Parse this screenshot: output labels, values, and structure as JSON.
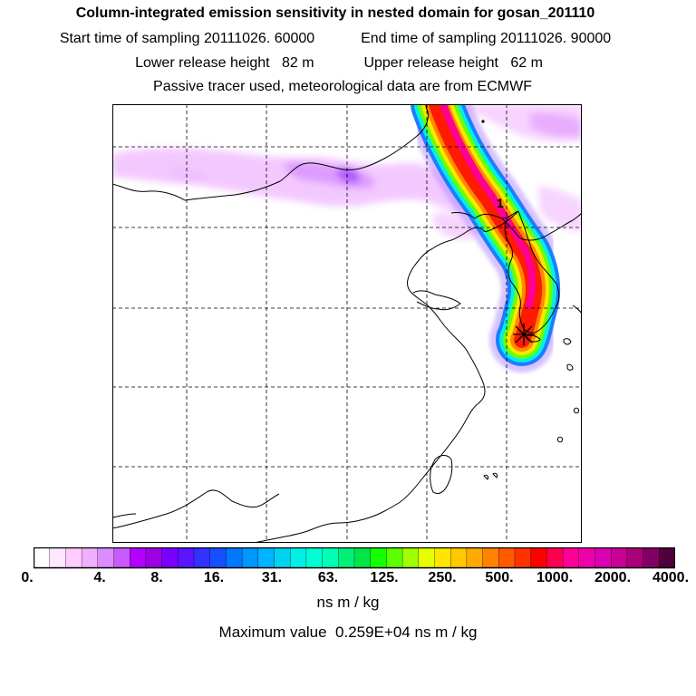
{
  "header": {
    "title": "Column-integrated emission sensitivity in nested domain for gosan_201110",
    "start_label": "Start time of sampling",
    "start_value": "20111026. 60000",
    "end_label": "End time of sampling",
    "end_value": "20111026. 90000",
    "lower_label": "Lower release height",
    "lower_value": "82 m",
    "upper_label": "Upper release height",
    "upper_value": "62 m",
    "note": "Passive tracer used, meteorological data are from ECMWF"
  },
  "map": {
    "marker_label": "1",
    "release_site": "gosan",
    "colors": {
      "frame": "#000000",
      "grid": "#000000",
      "coast": "#000000"
    }
  },
  "colorbar": {
    "tick_labels": [
      "0.",
      "4.",
      "8.",
      "16.",
      "31.",
      "63.",
      "125.",
      "250.",
      "500.",
      "1000.",
      "2000.",
      "4000."
    ],
    "units": "ns m / kg",
    "max_label": "Maximum value",
    "max_value": "0.259E+04 ns m / kg",
    "colors": [
      "#ffffff",
      "#ffe8ff",
      "#ffccff",
      "#f0b0ff",
      "#dc8cff",
      "#c85aff",
      "#b400ff",
      "#a000e6",
      "#7800ff",
      "#5a14ff",
      "#3232ff",
      "#1450ff",
      "#0078ff",
      "#0096ff",
      "#00b4ff",
      "#00d2f0",
      "#00f0e6",
      "#00ffd2",
      "#00ffb4",
      "#00f07a",
      "#00e646",
      "#14ff00",
      "#5aff00",
      "#a0ff00",
      "#e6ff00",
      "#ffe600",
      "#ffc800",
      "#ffaa00",
      "#ff8200",
      "#ff5a00",
      "#ff3200",
      "#ff0000",
      "#ff0050",
      "#ff0096",
      "#f000aa",
      "#dc00b4",
      "#c80096",
      "#aa0078",
      "#820064",
      "#50003c"
    ]
  }
}
